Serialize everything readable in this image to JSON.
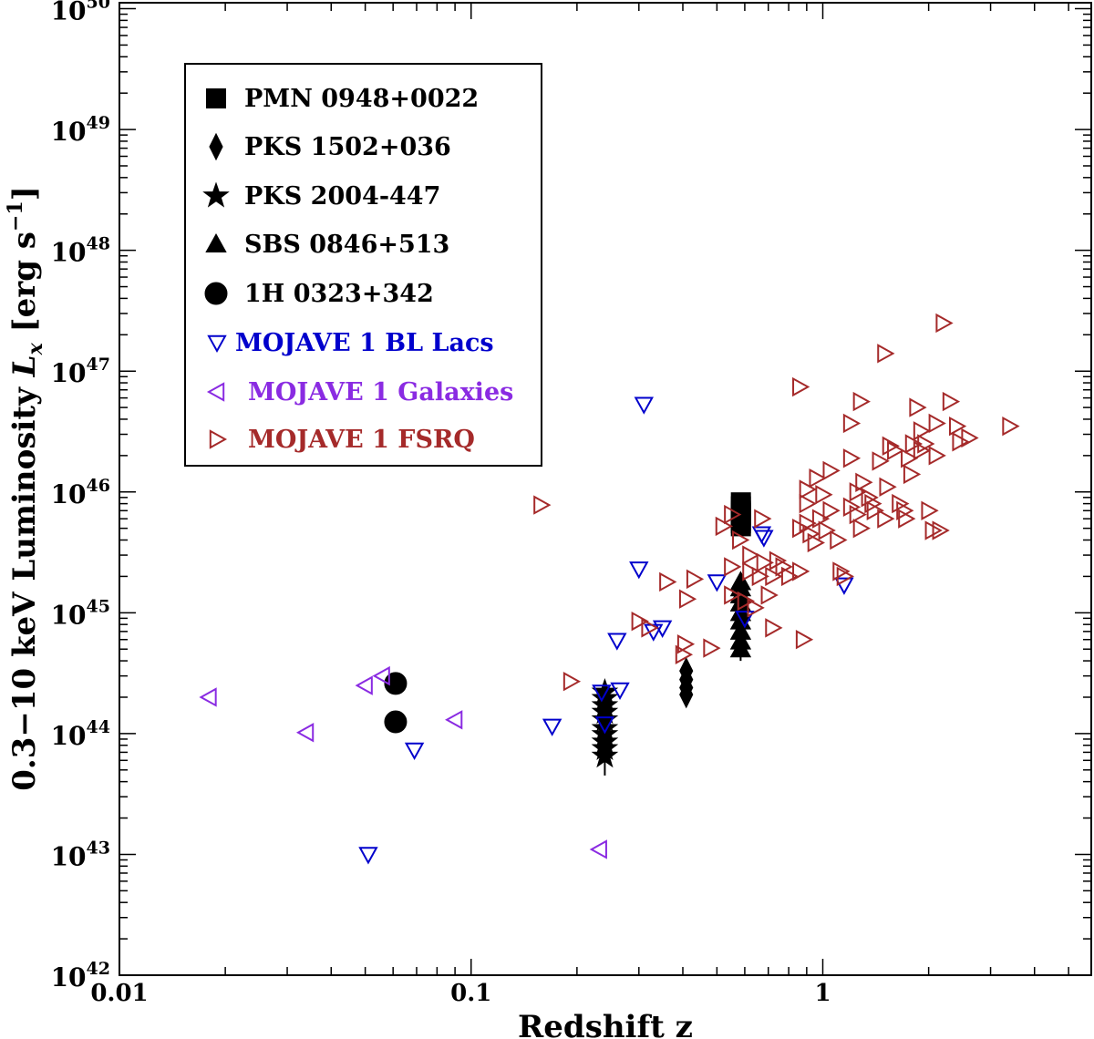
{
  "chart_data": {
    "type": "scatter",
    "xscale": "log",
    "yscale": "log",
    "xlim": [
      0.01,
      5.8
    ],
    "ylim": [
      1e+42,
      1.12e+50
    ],
    "xlabel": "Redshift z",
    "ylabel": "0.3−10 keV Luminosity",
    "ylabel_symbol": "L",
    "ylabel_subscript": "x",
    "ylabel_units": "[erg s",
    "ylabel_units_exp": "−1",
    "ylabel_units_close": "]",
    "x_ticks": [
      {
        "value": 0.01,
        "label": "0.01"
      },
      {
        "value": 0.1,
        "label": "0.1"
      },
      {
        "value": 1,
        "label": "1"
      }
    ],
    "y_ticks": [
      {
        "value": 1e+42,
        "base": "10",
        "exp": "42"
      },
      {
        "value": 1e+43,
        "base": "10",
        "exp": "43"
      },
      {
        "value": 1e+44,
        "base": "10",
        "exp": "44"
      },
      {
        "value": 1e+45,
        "base": "10",
        "exp": "45"
      },
      {
        "value": 1e+46,
        "base": "10",
        "exp": "46"
      },
      {
        "value": 1e+47,
        "base": "10",
        "exp": "47"
      },
      {
        "value": 1e+48,
        "base": "10",
        "exp": "48"
      },
      {
        "value": 1e+49,
        "base": "10",
        "exp": "49"
      },
      {
        "value": 1e+50,
        "base": "10",
        "exp": "50"
      }
    ],
    "legend_position": "upper-left",
    "series": [
      {
        "name": "PMN 0948+0022",
        "marker": "square",
        "color": "#000000",
        "filled": true,
        "points": [
          [
            0.585,
            5.2e+45
          ],
          [
            0.585,
            5.8e+45
          ],
          [
            0.585,
            6.4e+45
          ],
          [
            0.585,
            7e+45
          ],
          [
            0.585,
            7.6e+45
          ],
          [
            0.585,
            8.2e+45
          ],
          [
            0.585,
            5.5e+45
          ],
          [
            0.585,
            6.7e+45
          ]
        ]
      },
      {
        "name": "PKS 1502+036",
        "marker": "diamond",
        "color": "#000000",
        "filled": true,
        "points": [
          [
            0.409,
            2.1e+44
          ],
          [
            0.409,
            2.4e+44
          ],
          [
            0.409,
            2.8e+44
          ],
          [
            0.409,
            3.3e+44
          ]
        ]
      },
      {
        "name": "PKS 2004-447",
        "marker": "star",
        "color": "#000000",
        "filled": true,
        "points": [
          [
            0.24,
            6.5e+43
          ],
          [
            0.24,
            7.5e+43
          ],
          [
            0.24,
            8.5e+43
          ],
          [
            0.24,
            9.8e+43
          ],
          [
            0.24,
            1.1e+44
          ],
          [
            0.24,
            1.3e+44
          ],
          [
            0.24,
            1.5e+44
          ],
          [
            0.24,
            1.7e+44
          ],
          [
            0.24,
            1.95e+44
          ],
          [
            0.24,
            2.2e+44
          ]
        ]
      },
      {
        "name": "SBS 0846+513",
        "marker": "triangle-up",
        "color": "#000000",
        "filled": true,
        "points": [
          [
            0.584,
            5e+44
          ],
          [
            0.584,
            5.8e+44
          ],
          [
            0.584,
            7e+44
          ],
          [
            0.584,
            8.5e+44
          ],
          [
            0.584,
            1e+45
          ],
          [
            0.584,
            1.2e+45
          ],
          [
            0.584,
            1.4e+45
          ],
          [
            0.584,
            1.6e+45
          ],
          [
            0.584,
            1.8e+45
          ]
        ]
      },
      {
        "name": "1H 0323+342",
        "marker": "circle",
        "color": "#000000",
        "filled": true,
        "points": [
          [
            0.061,
            2.6e+44
          ],
          [
            0.061,
            1.25e+44
          ]
        ]
      },
      {
        "name": "MOJAVE 1 BL Lacs",
        "marker": "triangle-down",
        "color": "#0000cc",
        "filled": false,
        "points": [
          [
            0.051,
            1e+43
          ],
          [
            0.069,
            7.3e+43
          ],
          [
            0.17,
            1.15e+44
          ],
          [
            0.24,
            1.2e+44
          ],
          [
            0.265,
            2.3e+44
          ],
          [
            0.26,
            5.9e+44
          ],
          [
            0.3,
            2.3e+45
          ],
          [
            0.31,
            5.3e+46
          ],
          [
            0.33,
            7e+44
          ],
          [
            0.35,
            7.5e+44
          ],
          [
            0.5,
            1.8e+45
          ],
          [
            0.68,
            4.2e+45
          ],
          [
            0.67,
            4.5e+45
          ],
          [
            0.6,
            9e+44
          ],
          [
            1.15,
            1.7e+45
          ],
          [
            0.235,
            2.2e+44
          ]
        ]
      },
      {
        "name": "MOJAVE 1 Galaxies",
        "marker": "triangle-left",
        "color": "#8a2be2",
        "filled": false,
        "points": [
          [
            0.018,
            2e+44
          ],
          [
            0.034,
            1.02e+44
          ],
          [
            0.05,
            2.5e+44
          ],
          [
            0.056,
            3e+44
          ],
          [
            0.09,
            1.3e+44
          ],
          [
            0.232,
            1.1e+43
          ]
        ]
      },
      {
        "name": "MOJAVE 1 FSRQ",
        "marker": "triangle-right",
        "color": "#a52a2a",
        "filled": false,
        "points": [
          [
            0.158,
            7.8e+45
          ],
          [
            0.192,
            2.7e+44
          ],
          [
            0.3,
            8.5e+44
          ],
          [
            0.32,
            7.5e+44
          ],
          [
            0.36,
            1.8e+45
          ],
          [
            0.4,
            4.5e+44
          ],
          [
            0.405,
            5.5e+44
          ],
          [
            0.41,
            1.3e+45
          ],
          [
            0.43,
            1.9e+45
          ],
          [
            0.48,
            5.1e+44
          ],
          [
            0.52,
            5.2e+45
          ],
          [
            0.55,
            2.4e+45
          ],
          [
            0.55,
            1.4e+45
          ],
          [
            0.55,
            6.5e+45
          ],
          [
            0.58,
            4e+45
          ],
          [
            0.62,
            3e+45
          ],
          [
            0.62,
            2.2e+45
          ],
          [
            0.64,
            1.1e+45
          ],
          [
            0.66,
            2e+45
          ],
          [
            0.67,
            6e+45
          ],
          [
            0.68,
            2.6e+45
          ],
          [
            0.7,
            1.4e+45
          ],
          [
            0.72,
            2e+45
          ],
          [
            0.72,
            7.5e+44
          ],
          [
            0.74,
            2.7e+45
          ],
          [
            0.8,
            2e+45
          ],
          [
            0.86,
            7.4e+46
          ],
          [
            0.86,
            2.2e+45
          ],
          [
            0.88,
            6e+44
          ],
          [
            0.86,
            5e+45
          ],
          [
            0.9,
            5.5e+45
          ],
          [
            0.9,
            8e+45
          ],
          [
            0.9,
            1.05e+46
          ],
          [
            0.92,
            4.5e+45
          ],
          [
            0.95,
            3.8e+45
          ],
          [
            0.96,
            1.3e+46
          ],
          [
            0.98,
            6e+45
          ],
          [
            1.0,
            9.5e+45
          ],
          [
            1.02,
            4.8e+45
          ],
          [
            1.05,
            1.5e+46
          ],
          [
            1.05,
            7e+45
          ],
          [
            1.1,
            4e+45
          ],
          [
            1.12,
            2.2e+45
          ],
          [
            1.15,
            2e+45
          ],
          [
            1.2,
            3.7e+46
          ],
          [
            1.2,
            1.9e+46
          ],
          [
            1.2,
            7.5e+45
          ],
          [
            1.25,
            1e+46
          ],
          [
            1.25,
            6.5e+45
          ],
          [
            1.28,
            5.6e+46
          ],
          [
            1.28,
            5e+45
          ],
          [
            1.3,
            1.2e+46
          ],
          [
            1.35,
            9e+45
          ],
          [
            1.38,
            8e+45
          ],
          [
            1.4,
            7e+45
          ],
          [
            1.45,
            1.8e+46
          ],
          [
            1.5,
            1.4e+47
          ],
          [
            1.5,
            6e+45
          ],
          [
            1.52,
            1.1e+46
          ],
          [
            1.55,
            2.4e+46
          ],
          [
            1.6,
            2.2e+46
          ],
          [
            1.65,
            8e+45
          ],
          [
            1.7,
            7e+45
          ],
          [
            1.72,
            6e+45
          ],
          [
            1.75,
            1.9e+46
          ],
          [
            1.78,
            1.4e+46
          ],
          [
            1.8,
            2.5e+46
          ],
          [
            1.85,
            5e+46
          ],
          [
            1.9,
            3.2e+46
          ],
          [
            1.9,
            2.2e+46
          ],
          [
            2.0,
            7e+45
          ],
          [
            2.05,
            4.8e+45
          ],
          [
            2.1,
            2e+46
          ],
          [
            2.1,
            3.7e+46
          ],
          [
            2.2,
            2.5e+47
          ],
          [
            2.3,
            5.6e+46
          ],
          [
            2.4,
            3.5e+46
          ],
          [
            2.45,
            2.6e+46
          ],
          [
            2.6,
            2.8e+46
          ],
          [
            3.4,
            3.5e+46
          ],
          [
            2.15,
            4.8e+45
          ],
          [
            1.95,
            2.5e+46
          ],
          [
            0.77,
            2.4e+45
          ],
          [
            0.6,
            1.25e+45
          ]
        ]
      }
    ]
  }
}
